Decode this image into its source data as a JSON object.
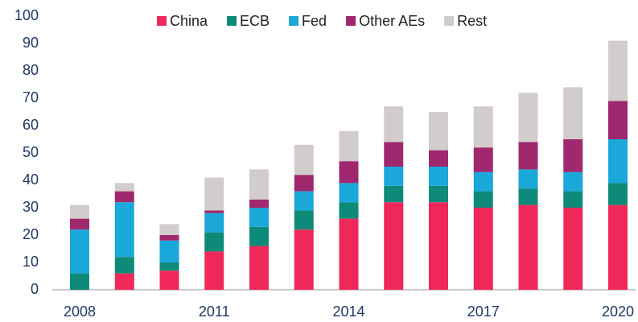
{
  "chart_data": {
    "type": "stacked-bar",
    "categories": [
      "2008",
      null,
      null,
      "2011",
      null,
      null,
      "2014",
      null,
      null,
      "2017",
      null,
      null,
      "2020"
    ],
    "series": [
      {
        "name": "China",
        "color": "#f0285a",
        "values": [
          0,
          6,
          7,
          14,
          16,
          22,
          26,
          32,
          32,
          30,
          31,
          30,
          31
        ]
      },
      {
        "name": "ECB",
        "color": "#0e8a78",
        "values": [
          6,
          6,
          3,
          7,
          7,
          7,
          6,
          6,
          6,
          6,
          6,
          6,
          8
        ]
      },
      {
        "name": "Fed",
        "color": "#1aa7d9",
        "values": [
          16,
          20,
          8,
          7,
          7,
          7,
          7,
          7,
          7,
          7,
          7,
          7,
          16
        ]
      },
      {
        "name": "Other AEs",
        "color": "#a0286e",
        "values": [
          4,
          4,
          2,
          1,
          3,
          6,
          8,
          9,
          6,
          9,
          10,
          12,
          14
        ]
      },
      {
        "name": "Rest",
        "color": "#d3cccc",
        "values": [
          5,
          3,
          4,
          12,
          11,
          11,
          11,
          13,
          14,
          15,
          18,
          19,
          22
        ]
      }
    ],
    "ylim": [
      0,
      100
    ],
    "yticks": [
      0,
      10,
      20,
      30,
      40,
      50,
      60,
      70,
      80,
      90,
      100
    ],
    "legend": "top"
  }
}
